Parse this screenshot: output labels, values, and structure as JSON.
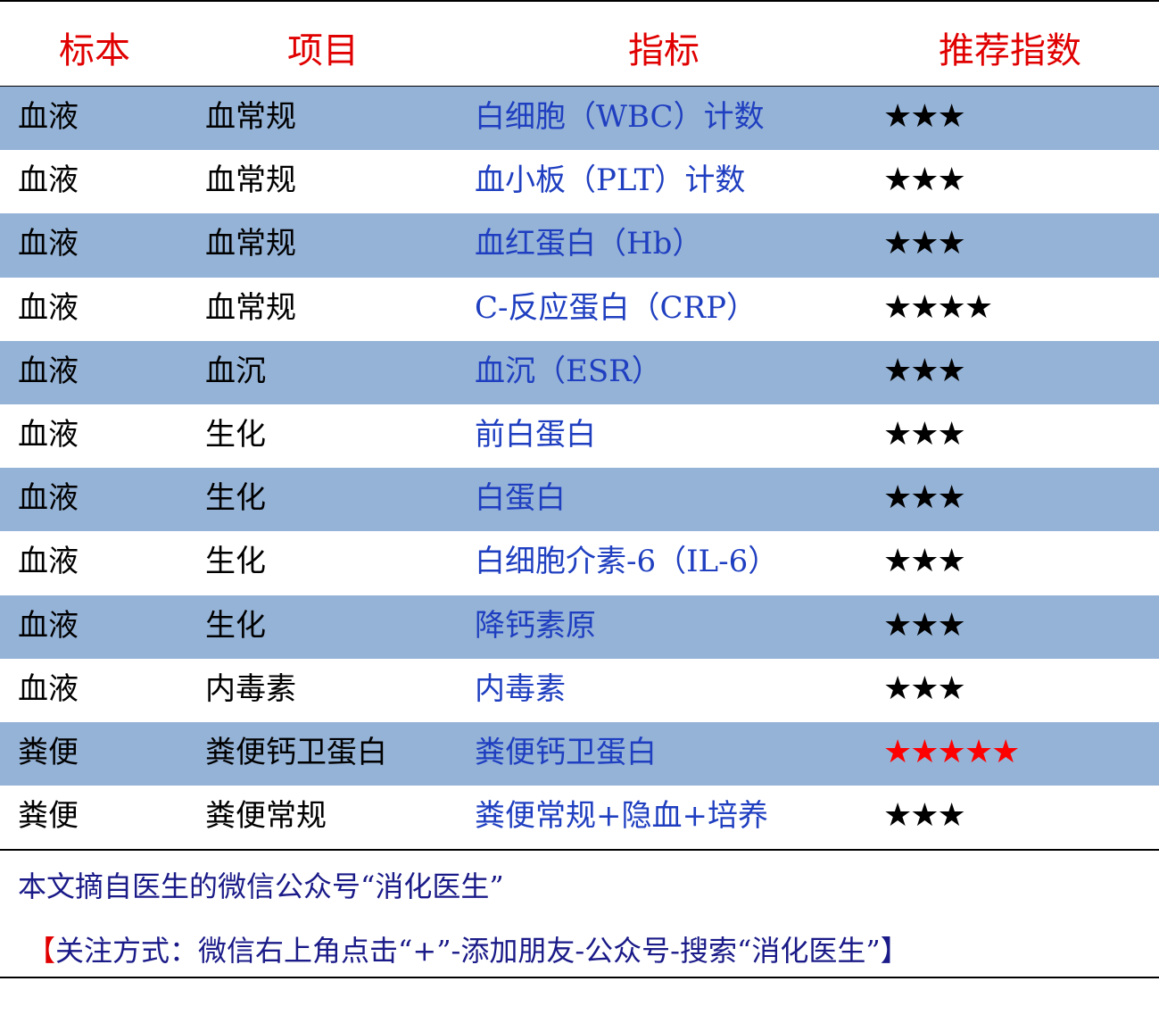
{
  "header": {
    "col1": "标本",
    "col2": "项目",
    "col3": "指标",
    "col4": "推荐指数"
  },
  "rows": [
    {
      "specimen": "血液",
      "item": "血常规",
      "indicator": "白细胞（WBC）计数",
      "stars": "★★★",
      "rating": 3
    },
    {
      "specimen": "血液",
      "item": "血常规",
      "indicator": "血小板（PLT）计数",
      "stars": "★★★",
      "rating": 3
    },
    {
      "specimen": "血液",
      "item": "血常规",
      "indicator": "血红蛋白（Hb）",
      "stars": "★★★",
      "rating": 3
    },
    {
      "specimen": "血液",
      "item": "血常规",
      "indicator": "C-反应蛋白（CRP）",
      "stars": "★★★★",
      "rating": 4
    },
    {
      "specimen": "血液",
      "item": "血沉",
      "indicator": "血沉（ESR）",
      "stars": "★★★",
      "rating": 3
    },
    {
      "specimen": "血液",
      "item": "生化",
      "indicator": "前白蛋白",
      "stars": "★★★",
      "rating": 3
    },
    {
      "specimen": "血液",
      "item": "生化",
      "indicator": "白蛋白",
      "stars": "★★★",
      "rating": 3
    },
    {
      "specimen": "血液",
      "item": "生化",
      "indicator": "白细胞介素-6（IL-6）",
      "stars": "★★★",
      "rating": 3
    },
    {
      "specimen": "血液",
      "item": "生化",
      "indicator": "降钙素原",
      "stars": "★★★",
      "rating": 3
    },
    {
      "specimen": "血液",
      "item": "内毒素",
      "indicator": "内毒素",
      "stars": "★★★",
      "rating": 3
    },
    {
      "specimen": "粪便",
      "item": "粪便钙卫蛋白",
      "indicator": "粪便钙卫蛋白",
      "stars": "★★★★★",
      "rating": 5,
      "highlight": true
    },
    {
      "specimen": "粪便",
      "item": "粪便常规",
      "indicator": "粪便常规+隐血+培养",
      "stars": "★★★",
      "rating": 3
    }
  ],
  "footer": {
    "source": "本文摘自医生的微信公众号“消化医生”",
    "follow_open": "【",
    "follow": "关注方式：微信右上角点击“+”-添加朋友-公众号-搜索“消化医生”",
    "follow_close": "】"
  },
  "colors": {
    "header": "#e00000",
    "shade": "#95b3d7",
    "indicator": "#1f3fc0",
    "highlight_star": "#ff0000",
    "footer": "#1a1a88"
  }
}
